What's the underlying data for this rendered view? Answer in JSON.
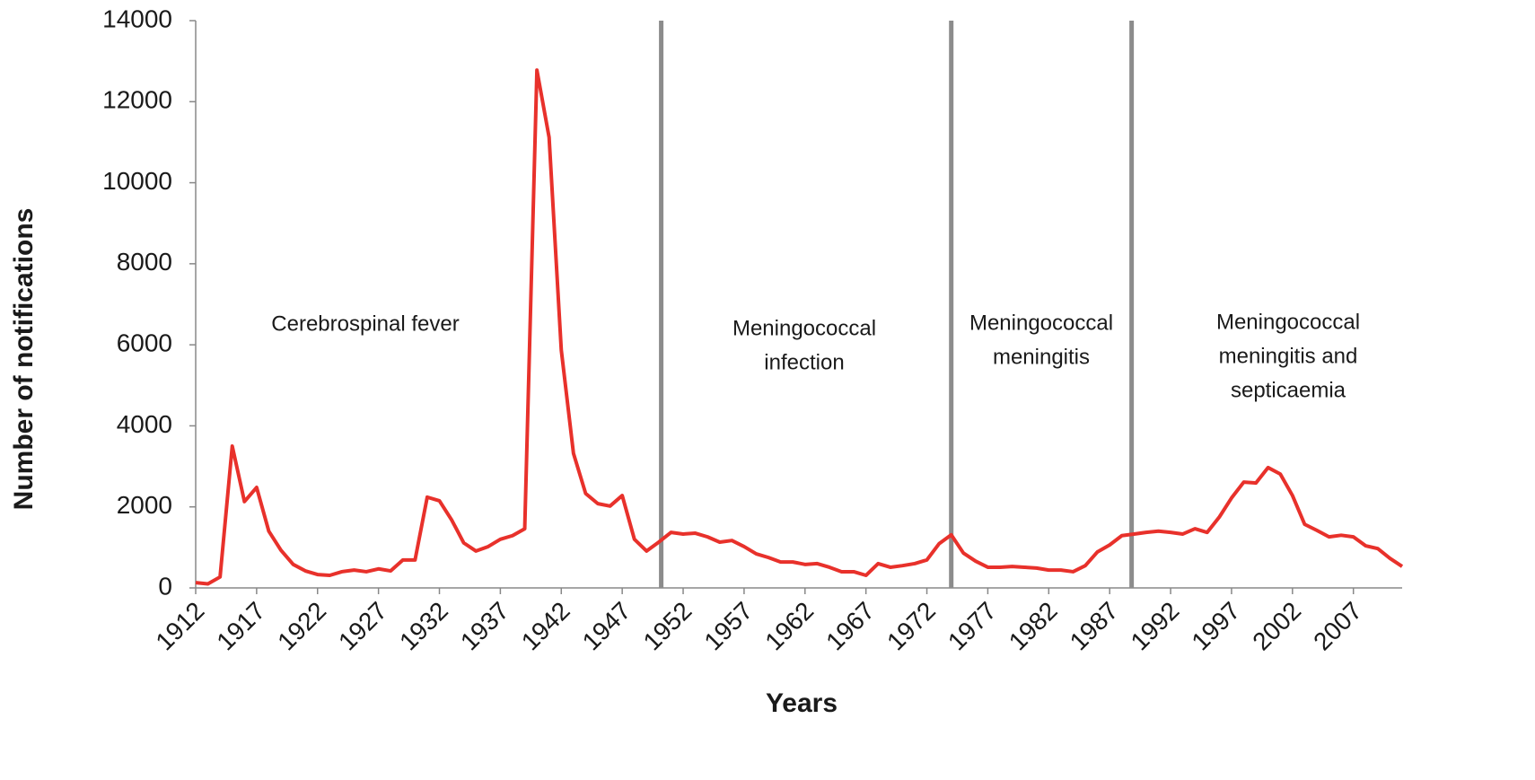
{
  "chart_data": {
    "type": "line",
    "x_label": "Years",
    "y_label": "Number of notifications",
    "x": [
      1912,
      1913,
      1914,
      1915,
      1916,
      1917,
      1918,
      1919,
      1920,
      1921,
      1922,
      1923,
      1924,
      1925,
      1926,
      1927,
      1928,
      1929,
      1930,
      1931,
      1932,
      1933,
      1934,
      1935,
      1936,
      1937,
      1938,
      1939,
      1940,
      1941,
      1942,
      1943,
      1944,
      1945,
      1946,
      1947,
      1948,
      1949,
      1950,
      1951,
      1952,
      1953,
      1954,
      1955,
      1956,
      1957,
      1958,
      1959,
      1960,
      1961,
      1962,
      1963,
      1964,
      1965,
      1966,
      1967,
      1968,
      1969,
      1970,
      1971,
      1972,
      1973,
      1974,
      1975,
      1976,
      1977,
      1978,
      1979,
      1980,
      1981,
      1982,
      1983,
      1984,
      1985,
      1986,
      1987,
      1988,
      1989,
      1990,
      1991,
      1992,
      1993,
      1994,
      1995,
      1996,
      1997,
      1998,
      1999,
      2000,
      2001,
      2002,
      2003,
      2004,
      2005,
      2006,
      2007,
      2008,
      2009,
      2010,
      2011
    ],
    "series": [
      {
        "color": "#e8312b",
        "values": [
          130,
          100,
          270,
          3500,
          2130,
          2480,
          1400,
          930,
          580,
          420,
          330,
          310,
          400,
          440,
          400,
          470,
          420,
          690,
          690,
          2240,
          2150,
          1680,
          1110,
          910,
          1020,
          1200,
          1290,
          1460,
          12780,
          11120,
          5870,
          3320,
          2330,
          2080,
          2020,
          2280,
          1200,
          910,
          1130,
          1370,
          1330,
          1350,
          1260,
          1130,
          1170,
          1020,
          840,
          750,
          640,
          640,
          580,
          600,
          510,
          400,
          400,
          310,
          600,
          510,
          550,
          600,
          690,
          1090,
          1310,
          860,
          660,
          510,
          510,
          530,
          510,
          490,
          440,
          440,
          400,
          550,
          890,
          1060,
          1290,
          1330,
          1370,
          1400,
          1370,
          1330,
          1460,
          1370,
          1750,
          2220,
          2610,
          2590,
          2970,
          2810,
          2280,
          1570,
          1420,
          1260,
          1300,
          1260,
          1040,
          970,
          730,
          530
        ]
      }
    ],
    "xlim": [
      1912,
      2011
    ],
    "xticks": [
      1912,
      1917,
      1922,
      1927,
      1932,
      1937,
      1942,
      1947,
      1952,
      1957,
      1962,
      1967,
      1972,
      1977,
      1982,
      1987,
      1992,
      1997,
      2002,
      2007
    ],
    "ylim": [
      0,
      14000
    ],
    "yticks": [
      0,
      2000,
      4000,
      6000,
      8000,
      10000,
      12000,
      14000
    ],
    "dividers": {
      "color": "#8c8c8c",
      "x": [
        1950.2,
        1974,
        1988.8
      ]
    },
    "annotations": [
      [
        "Cerebrospinal fever"
      ],
      [
        "Meningococcal",
        "infection"
      ],
      [
        "Meningococcal",
        "meningitis"
      ],
      [
        "Meningococcal",
        "meningitis and",
        "septicaemia"
      ]
    ]
  }
}
